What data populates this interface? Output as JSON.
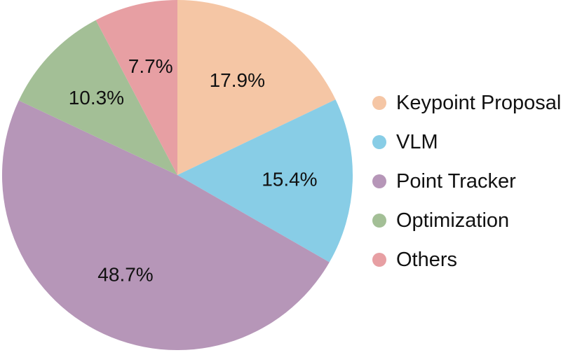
{
  "chart_data": {
    "type": "pie",
    "title": "",
    "slices": [
      {
        "label": "Keypoint Proposal",
        "value": 17.9,
        "value_label": "17.9%",
        "color": "#F5C6A5"
      },
      {
        "label": "VLM",
        "value": 15.4,
        "value_label": "15.4%",
        "color": "#88CDE6"
      },
      {
        "label": "Point Tracker",
        "value": 48.7,
        "value_label": "48.7%",
        "color": "#B696B8"
      },
      {
        "label": "Optimization",
        "value": 10.3,
        "value_label": "10.3%",
        "color": "#A3BF96"
      },
      {
        "label": "Others",
        "value": 7.7,
        "value_label": "7.7%",
        "color": "#E79FA3"
      }
    ],
    "start_angle": "12 o'clock",
    "direction": "clockwise",
    "legend_position": "right"
  }
}
